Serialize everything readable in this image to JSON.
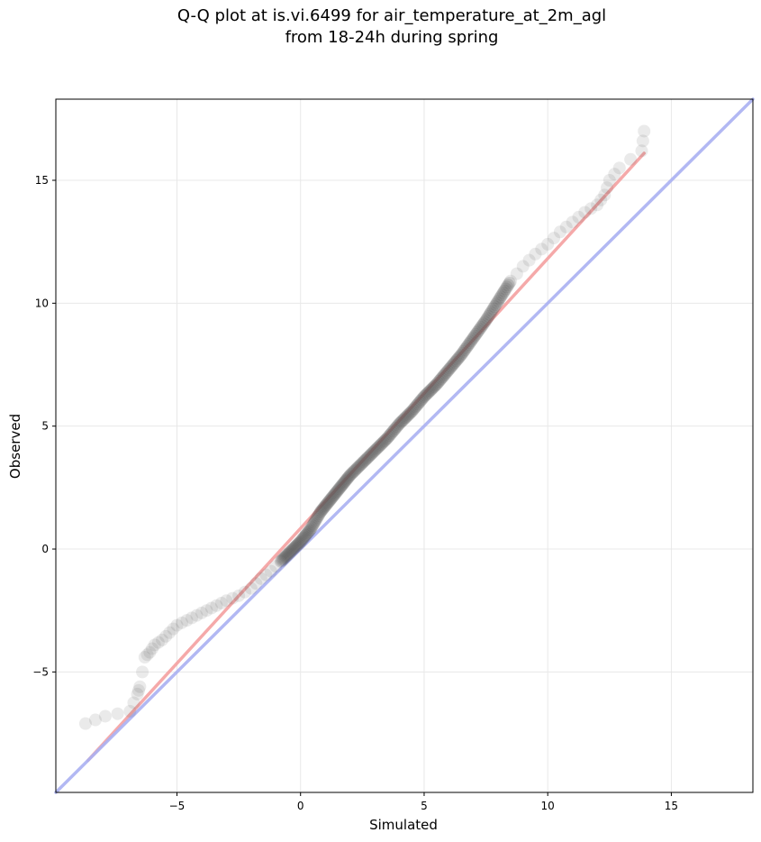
{
  "chart_data": {
    "type": "scatter",
    "title_lines": [
      "Q-Q plot at is.vi.6499 for air_temperature_at_2m_agl",
      "from 18-24h during spring"
    ],
    "xlabel": "Simulated",
    "ylabel": "Observed",
    "xlim": [
      -9.9,
      18.3
    ],
    "ylim": [
      -9.9,
      18.3
    ],
    "xticks": [
      -5,
      0,
      5,
      10,
      15
    ],
    "yticks": [
      -5,
      0,
      5,
      10,
      15
    ],
    "xtick_labels": [
      "−5",
      "0",
      "5",
      "10",
      "15"
    ],
    "ytick_labels": [
      "−5",
      "0",
      "5",
      "10",
      "15"
    ],
    "grid": true,
    "point_color": "#555555",
    "quantile_points": [
      [
        -8.7,
        -7.1
      ],
      [
        -7.9,
        -6.8
      ],
      [
        -6.9,
        -6.6
      ],
      [
        -6.6,
        -5.9
      ],
      [
        -6.5,
        -5.6
      ],
      [
        -6.3,
        -4.4
      ],
      [
        -6.1,
        -4.2
      ],
      [
        -5.9,
        -3.9
      ],
      [
        -5.6,
        -3.7
      ],
      [
        -5.3,
        -3.4
      ],
      [
        -5.0,
        -3.1
      ],
      [
        -4.6,
        -2.9
      ],
      [
        -4.2,
        -2.7
      ],
      [
        -3.8,
        -2.5
      ],
      [
        -3.4,
        -2.3
      ],
      [
        -3.0,
        -2.1
      ],
      [
        -2.5,
        -1.9
      ],
      [
        -2.0,
        -1.6
      ],
      [
        -1.6,
        -1.2
      ],
      [
        -1.2,
        -0.9
      ],
      [
        -0.8,
        -0.5
      ],
      [
        -0.4,
        -0.1
      ],
      [
        0.0,
        0.3
      ],
      [
        0.4,
        0.8
      ],
      [
        0.8,
        1.5
      ],
      [
        1.2,
        2.0
      ],
      [
        1.6,
        2.5
      ],
      [
        2.0,
        3.0
      ],
      [
        2.5,
        3.5
      ],
      [
        3.0,
        4.0
      ],
      [
        3.5,
        4.5
      ],
      [
        4.0,
        5.1
      ],
      [
        4.5,
        5.6
      ],
      [
        5.0,
        6.2
      ],
      [
        5.5,
        6.7
      ],
      [
        6.0,
        7.3
      ],
      [
        6.5,
        7.9
      ],
      [
        7.0,
        8.6
      ],
      [
        7.5,
        9.3
      ],
      [
        8.0,
        10.1
      ],
      [
        8.5,
        10.9
      ],
      [
        9.0,
        11.5
      ],
      [
        9.5,
        12.0
      ],
      [
        10.0,
        12.4
      ],
      [
        10.5,
        12.9
      ],
      [
        11.0,
        13.3
      ],
      [
        11.5,
        13.7
      ],
      [
        12.0,
        14.0
      ],
      [
        12.3,
        14.4
      ],
      [
        12.5,
        15.0
      ],
      [
        12.9,
        15.5
      ],
      [
        13.8,
        16.2
      ],
      [
        13.9,
        17.0
      ]
    ],
    "series": [
      {
        "color": "#f4a0a0",
        "points": [
          [
            -8.6,
            -8.6
          ],
          [
            13.9,
            16.1
          ]
        ]
      },
      {
        "color": "#aab0f2",
        "points": [
          [
            -9.9,
            -9.9
          ],
          [
            18.3,
            18.3
          ]
        ]
      }
    ]
  }
}
